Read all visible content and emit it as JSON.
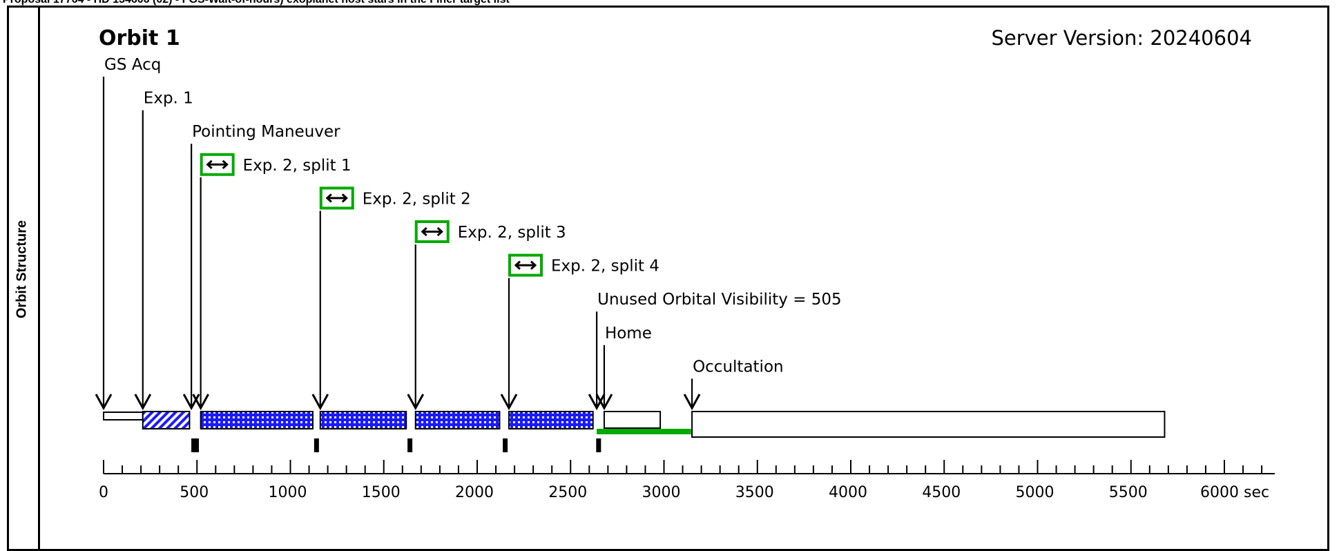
{
  "header_text": "Proposal 17764 - HD 134606 (02) - FGS-Wait-of-hours) exoplanet host stars in the Finer target list",
  "side_label": "Orbit Structure",
  "orbit_title": "Orbit 1",
  "server_version": "Server Version: 20240604",
  "colors": {
    "hatch": "#1a1aff",
    "accent_green": "#00aa00",
    "box_border": "#000000"
  },
  "events": [
    {
      "label": "GS Acq",
      "time": 0,
      "has_icon": false
    },
    {
      "label": "Exp. 1",
      "time": 210,
      "has_icon": false
    },
    {
      "label": "Pointing Maneuver",
      "time": 470,
      "has_icon": false
    },
    {
      "label": "Exp. 2, split 1",
      "time": 520,
      "has_icon": true
    },
    {
      "label": "Exp. 2, split 2",
      "time": 1160,
      "has_icon": true
    },
    {
      "label": "Exp. 2, split 3",
      "time": 1670,
      "has_icon": true
    },
    {
      "label": "Exp. 2, split 4",
      "time": 2170,
      "has_icon": true
    },
    {
      "label": "Unused Orbital Visibility = 505",
      "time": 2640,
      "has_icon": false
    },
    {
      "label": "Home",
      "time": 2680,
      "has_icon": false
    },
    {
      "label": "Occultation",
      "time": 3150,
      "has_icon": false
    }
  ],
  "segments": [
    {
      "name": "gs-acq-bar",
      "start": 0,
      "end": 210,
      "fill": "none",
      "thin": true
    },
    {
      "name": "exp1-bar",
      "start": 210,
      "end": 460,
      "fill": "hatch"
    },
    {
      "name": "exp2-split1-bar",
      "start": 520,
      "end": 1120,
      "fill": "dots"
    },
    {
      "name": "exp2-split2-bar",
      "start": 1160,
      "end": 1620,
      "fill": "dots"
    },
    {
      "name": "exp2-split3-bar",
      "start": 1670,
      "end": 2120,
      "fill": "dots"
    },
    {
      "name": "exp2-split4-bar",
      "start": 2170,
      "end": 2620,
      "fill": "dots"
    },
    {
      "name": "home-bar",
      "start": 2680,
      "end": 2980,
      "fill": "none"
    },
    {
      "name": "occultation-bar",
      "start": 3150,
      "end": 5680,
      "fill": "none"
    }
  ],
  "unused_visibility": {
    "start": 2640,
    "end": 3145
  },
  "markers": [
    {
      "time": 490,
      "wide": true
    },
    {
      "time": 1140,
      "wide": false
    },
    {
      "time": 1640,
      "wide": false
    },
    {
      "time": 2150,
      "wide": false
    },
    {
      "time": 2650,
      "wide": false
    }
  ],
  "axis": {
    "tick_labels": [
      "0",
      "500",
      "1000",
      "1500",
      "2000",
      "2500",
      "3000",
      "3500",
      "4000",
      "4500",
      "5000",
      "5500",
      "6000 sec"
    ],
    "max": 6270
  }
}
